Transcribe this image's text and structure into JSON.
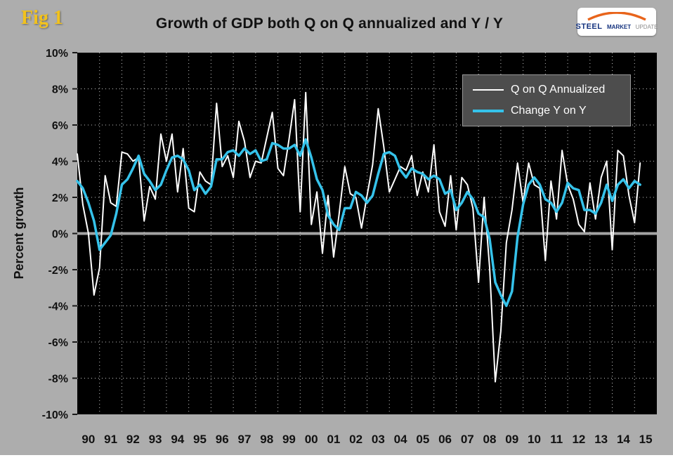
{
  "figure_label": "Fig 1",
  "title": "Growth of GDP both Q on Q annualized and Y / Y",
  "logo": {
    "steel": "STEEL",
    "market": "MARKET",
    "update": "UPDATE"
  },
  "y_axis": {
    "label": "Percent growth",
    "ticks": [
      "10%",
      "8%",
      "6%",
      "4%",
      "2%",
      "0%",
      "-2%",
      "-4%",
      "-6%",
      "-8%",
      "-10%"
    ]
  },
  "x_axis": {
    "labels": [
      "90",
      "91",
      "92",
      "93",
      "94",
      "95",
      "96",
      "97",
      "98",
      "99",
      "00",
      "01",
      "02",
      "03",
      "04",
      "05",
      "06",
      "07",
      "08",
      "09",
      "10",
      "11",
      "12",
      "13",
      "14",
      "15"
    ]
  },
  "legend": {
    "items": [
      {
        "label": "Q on Q Annualized",
        "color": "#ffffff"
      },
      {
        "label": "Change Y on Y",
        "color": "#35c2ea"
      }
    ]
  },
  "chart_data": {
    "type": "line",
    "frequency": "quarterly",
    "x_start": 1990,
    "x_step": 0.25,
    "x_domain": [
      1990,
      2016
    ],
    "ylim": [
      -10,
      10
    ],
    "grid": "dotted",
    "plot_bg": "#000000",
    "grid_color": "#e8e8e8",
    "zero_line_color": "#a3a3a3",
    "legend_position": "top-right",
    "series": [
      {
        "name": "Q on Q Annualized",
        "color": "#ffffff",
        "width": 2,
        "values": [
          4.4,
          1.6,
          0.0,
          -3.4,
          -1.9,
          3.2,
          1.7,
          1.5,
          4.5,
          4.4,
          4.0,
          4.2,
          0.7,
          2.6,
          1.9,
          5.5,
          4.0,
          5.5,
          2.3,
          4.7,
          1.4,
          1.2,
          3.4,
          2.9,
          2.7,
          7.2,
          3.7,
          4.3,
          3.1,
          6.2,
          5.1,
          3.1,
          4.0,
          3.9,
          5.3,
          6.7,
          3.6,
          3.2,
          5.2,
          7.4,
          1.2,
          7.8,
          0.5,
          2.3,
          -1.1,
          2.1,
          -1.3,
          1.1,
          3.7,
          2.2,
          2.0,
          0.3,
          2.1,
          3.8,
          6.9,
          4.8,
          2.3,
          3.0,
          3.7,
          3.5,
          4.3,
          2.1,
          3.4,
          2.3,
          4.9,
          1.2,
          0.4,
          3.2,
          0.2,
          3.1,
          2.7,
          1.4,
          -2.7,
          2.0,
          -1.9,
          -8.2,
          -5.4,
          -0.5,
          1.3,
          3.9,
          1.7,
          3.9,
          2.7,
          2.5,
          -1.5,
          2.9,
          0.8,
          4.6,
          2.7,
          1.9,
          0.5,
          0.1,
          2.8,
          0.8,
          3.1,
          4.0,
          -0.9,
          4.6,
          4.3,
          2.1,
          0.6,
          3.9
        ]
      },
      {
        "name": "Change Y on Y",
        "color": "#35c2ea",
        "width": 3.5,
        "values": [
          2.9,
          2.5,
          1.7,
          0.7,
          -0.9,
          -0.5,
          -0.1,
          1.1,
          2.7,
          3.0,
          3.6,
          4.3,
          3.3,
          2.9,
          2.4,
          2.7,
          3.5,
          4.2,
          4.3,
          4.1,
          3.5,
          2.4,
          2.7,
          2.2,
          2.6,
          4.1,
          4.1,
          4.5,
          4.6,
          4.3,
          4.7,
          4.4,
          4.6,
          4.0,
          4.1,
          5.0,
          4.9,
          4.7,
          4.7,
          4.9,
          4.3,
          5.2,
          4.2,
          3.0,
          2.4,
          1.0,
          0.5,
          0.2,
          1.4,
          1.4,
          2.3,
          2.1,
          1.7,
          2.1,
          3.3,
          4.4,
          4.5,
          4.3,
          3.5,
          3.1,
          3.6,
          3.4,
          3.3,
          3.0,
          3.2,
          3.0,
          2.2,
          2.4,
          1.3,
          1.7,
          2.3,
          1.9,
          1.1,
          0.9,
          -0.3,
          -2.7,
          -3.4,
          -4.0,
          -3.2,
          -0.2,
          1.6,
          2.7,
          3.1,
          2.7,
          1.9,
          1.7,
          1.2,
          1.7,
          2.8,
          2.5,
          2.4,
          1.3,
          1.3,
          1.1,
          1.7,
          2.7,
          1.8,
          2.7,
          3.0,
          2.5,
          2.9,
          2.7
        ]
      }
    ]
  }
}
